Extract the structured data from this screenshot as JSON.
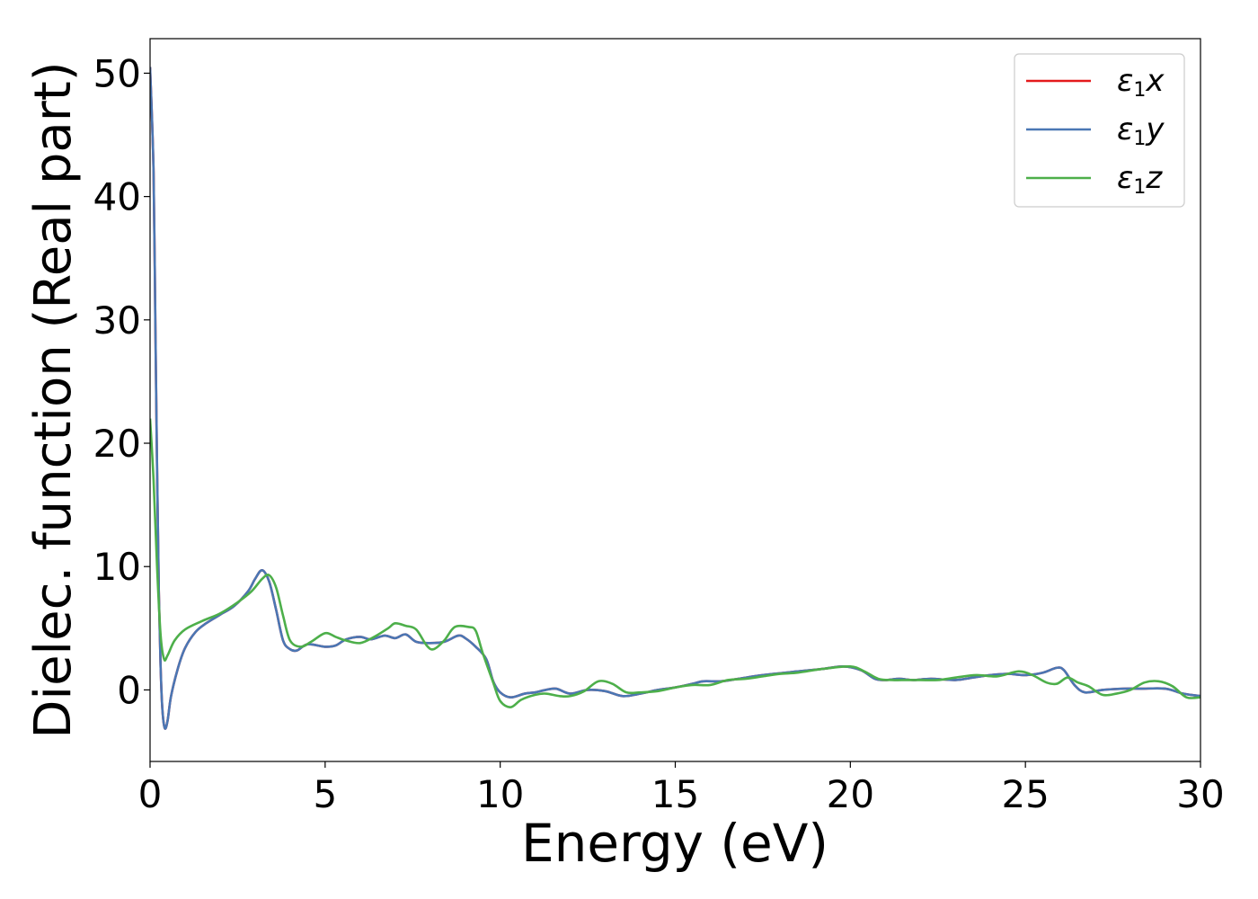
{
  "chart_data": {
    "type": "line",
    "xlabel": "Energy (eV)",
    "ylabel": "Dielec. function (Real part)",
    "xlim": [
      0,
      30
    ],
    "ylim": [
      -5.8,
      52.8
    ],
    "xticks": [
      0,
      5,
      10,
      15,
      20,
      25,
      30
    ],
    "yticks": [
      0,
      10,
      20,
      30,
      40,
      50
    ],
    "grid": false,
    "legend_position": "top-right",
    "series": [
      {
        "name": "ε1x",
        "legend_base": "ε",
        "legend_sub": "1",
        "legend_var": "x",
        "color": "#e41a1c",
        "points": [
          [
            0.0,
            50.5
          ],
          [
            0.1,
            42.0
          ],
          [
            0.15,
            30.0
          ],
          [
            0.2,
            18.0
          ],
          [
            0.25,
            8.0
          ],
          [
            0.3,
            2.0
          ],
          [
            0.35,
            -1.5
          ],
          [
            0.42,
            -3.1
          ],
          [
            0.5,
            -2.5
          ],
          [
            0.6,
            -0.5
          ],
          [
            0.8,
            1.8
          ],
          [
            1.0,
            3.4
          ],
          [
            1.3,
            4.7
          ],
          [
            1.6,
            5.4
          ],
          [
            2.0,
            6.1
          ],
          [
            2.4,
            6.8
          ],
          [
            2.8,
            8.0
          ],
          [
            3.0,
            9.0
          ],
          [
            3.2,
            9.7
          ],
          [
            3.4,
            8.8
          ],
          [
            3.6,
            6.5
          ],
          [
            3.8,
            4.0
          ],
          [
            4.0,
            3.3
          ],
          [
            4.2,
            3.2
          ],
          [
            4.5,
            3.7
          ],
          [
            5.0,
            3.5
          ],
          [
            5.3,
            3.6
          ],
          [
            5.6,
            4.1
          ],
          [
            6.0,
            4.3
          ],
          [
            6.3,
            4.1
          ],
          [
            6.7,
            4.4
          ],
          [
            7.0,
            4.2
          ],
          [
            7.3,
            4.5
          ],
          [
            7.6,
            3.9
          ],
          [
            8.0,
            3.8
          ],
          [
            8.4,
            3.9
          ],
          [
            8.8,
            4.4
          ],
          [
            9.0,
            4.2
          ],
          [
            9.3,
            3.5
          ],
          [
            9.6,
            2.5
          ],
          [
            9.8,
            0.7
          ],
          [
            10.0,
            -0.2
          ],
          [
            10.3,
            -0.6
          ],
          [
            10.7,
            -0.3
          ],
          [
            11.0,
            -0.2
          ],
          [
            11.3,
            0.0
          ],
          [
            11.6,
            0.1
          ],
          [
            12.0,
            -0.3
          ],
          [
            12.5,
            0.0
          ],
          [
            13.0,
            -0.1
          ],
          [
            13.5,
            -0.5
          ],
          [
            14.0,
            -0.3
          ],
          [
            14.5,
            0.0
          ],
          [
            15.0,
            0.2
          ],
          [
            15.5,
            0.5
          ],
          [
            15.8,
            0.7
          ],
          [
            16.3,
            0.7
          ],
          [
            16.8,
            0.9
          ],
          [
            17.5,
            1.2
          ],
          [
            18.5,
            1.5
          ],
          [
            19.2,
            1.7
          ],
          [
            19.8,
            1.9
          ],
          [
            20.3,
            1.6
          ],
          [
            20.7,
            0.9
          ],
          [
            21.0,
            0.8
          ],
          [
            21.4,
            0.9
          ],
          [
            21.8,
            0.8
          ],
          [
            22.3,
            0.9
          ],
          [
            23.0,
            0.8
          ],
          [
            23.5,
            1.0
          ],
          [
            24.0,
            1.2
          ],
          [
            24.5,
            1.3
          ],
          [
            25.0,
            1.2
          ],
          [
            25.5,
            1.4
          ],
          [
            25.9,
            1.8
          ],
          [
            26.1,
            1.6
          ],
          [
            26.4,
            0.4
          ],
          [
            26.7,
            -0.2
          ],
          [
            27.2,
            0.0
          ],
          [
            27.8,
            0.1
          ],
          [
            28.3,
            0.1
          ],
          [
            29.0,
            0.1
          ],
          [
            29.5,
            -0.3
          ],
          [
            30.0,
            -0.5
          ]
        ]
      },
      {
        "name": "ε1y",
        "legend_base": "ε",
        "legend_sub": "1",
        "legend_var": "y",
        "color": "#4a77b4",
        "points": [
          [
            0.0,
            50.5
          ],
          [
            0.1,
            42.0
          ],
          [
            0.15,
            30.0
          ],
          [
            0.2,
            18.0
          ],
          [
            0.25,
            8.0
          ],
          [
            0.3,
            2.0
          ],
          [
            0.35,
            -1.5
          ],
          [
            0.42,
            -3.1
          ],
          [
            0.5,
            -2.5
          ],
          [
            0.6,
            -0.5
          ],
          [
            0.8,
            1.8
          ],
          [
            1.0,
            3.4
          ],
          [
            1.3,
            4.7
          ],
          [
            1.6,
            5.4
          ],
          [
            2.0,
            6.1
          ],
          [
            2.4,
            6.8
          ],
          [
            2.8,
            8.0
          ],
          [
            3.0,
            9.0
          ],
          [
            3.2,
            9.7
          ],
          [
            3.4,
            8.8
          ],
          [
            3.6,
            6.5
          ],
          [
            3.8,
            4.0
          ],
          [
            4.0,
            3.3
          ],
          [
            4.2,
            3.2
          ],
          [
            4.5,
            3.7
          ],
          [
            5.0,
            3.5
          ],
          [
            5.3,
            3.6
          ],
          [
            5.6,
            4.1
          ],
          [
            6.0,
            4.3
          ],
          [
            6.3,
            4.1
          ],
          [
            6.7,
            4.4
          ],
          [
            7.0,
            4.2
          ],
          [
            7.3,
            4.5
          ],
          [
            7.6,
            3.9
          ],
          [
            8.0,
            3.8
          ],
          [
            8.4,
            3.9
          ],
          [
            8.8,
            4.4
          ],
          [
            9.0,
            4.2
          ],
          [
            9.3,
            3.5
          ],
          [
            9.6,
            2.5
          ],
          [
            9.8,
            0.7
          ],
          [
            10.0,
            -0.2
          ],
          [
            10.3,
            -0.6
          ],
          [
            10.7,
            -0.3
          ],
          [
            11.0,
            -0.2
          ],
          [
            11.3,
            0.0
          ],
          [
            11.6,
            0.1
          ],
          [
            12.0,
            -0.3
          ],
          [
            12.5,
            0.0
          ],
          [
            13.0,
            -0.1
          ],
          [
            13.5,
            -0.5
          ],
          [
            14.0,
            -0.3
          ],
          [
            14.5,
            0.0
          ],
          [
            15.0,
            0.2
          ],
          [
            15.5,
            0.5
          ],
          [
            15.8,
            0.7
          ],
          [
            16.3,
            0.7
          ],
          [
            16.8,
            0.9
          ],
          [
            17.5,
            1.2
          ],
          [
            18.5,
            1.5
          ],
          [
            19.2,
            1.7
          ],
          [
            19.8,
            1.9
          ],
          [
            20.3,
            1.6
          ],
          [
            20.7,
            0.9
          ],
          [
            21.0,
            0.8
          ],
          [
            21.4,
            0.9
          ],
          [
            21.8,
            0.8
          ],
          [
            22.3,
            0.9
          ],
          [
            23.0,
            0.8
          ],
          [
            23.5,
            1.0
          ],
          [
            24.0,
            1.2
          ],
          [
            24.5,
            1.3
          ],
          [
            25.0,
            1.2
          ],
          [
            25.5,
            1.4
          ],
          [
            25.9,
            1.8
          ],
          [
            26.1,
            1.6
          ],
          [
            26.4,
            0.4
          ],
          [
            26.7,
            -0.2
          ],
          [
            27.2,
            0.0
          ],
          [
            27.8,
            0.1
          ],
          [
            28.3,
            0.1
          ],
          [
            29.0,
            0.1
          ],
          [
            29.5,
            -0.3
          ],
          [
            30.0,
            -0.5
          ]
        ]
      },
      {
        "name": "ε1z",
        "legend_base": "ε",
        "legend_sub": "1",
        "legend_var": "z",
        "color": "#4daf4a",
        "points": [
          [
            0.0,
            22.0
          ],
          [
            0.1,
            17.0
          ],
          [
            0.2,
            10.0
          ],
          [
            0.3,
            4.5
          ],
          [
            0.4,
            2.5
          ],
          [
            0.5,
            2.8
          ],
          [
            0.7,
            4.0
          ],
          [
            1.0,
            4.9
          ],
          [
            1.5,
            5.6
          ],
          [
            2.0,
            6.2
          ],
          [
            2.5,
            7.1
          ],
          [
            2.9,
            8.0
          ],
          [
            3.2,
            9.0
          ],
          [
            3.4,
            9.3
          ],
          [
            3.6,
            8.3
          ],
          [
            3.8,
            6.0
          ],
          [
            4.0,
            4.0
          ],
          [
            4.3,
            3.5
          ],
          [
            4.6,
            3.9
          ],
          [
            5.0,
            4.6
          ],
          [
            5.3,
            4.3
          ],
          [
            5.6,
            4.0
          ],
          [
            6.0,
            3.8
          ],
          [
            6.4,
            4.3
          ],
          [
            6.8,
            5.0
          ],
          [
            7.0,
            5.4
          ],
          [
            7.3,
            5.2
          ],
          [
            7.6,
            4.9
          ],
          [
            7.9,
            3.6
          ],
          [
            8.1,
            3.3
          ],
          [
            8.4,
            4.0
          ],
          [
            8.7,
            5.1
          ],
          [
            9.1,
            5.1
          ],
          [
            9.3,
            4.8
          ],
          [
            9.5,
            3.0
          ],
          [
            9.8,
            0.6
          ],
          [
            10.0,
            -0.9
          ],
          [
            10.3,
            -1.4
          ],
          [
            10.6,
            -0.8
          ],
          [
            11.0,
            -0.4
          ],
          [
            11.3,
            -0.3
          ],
          [
            11.7,
            -0.5
          ],
          [
            12.0,
            -0.5
          ],
          [
            12.4,
            -0.1
          ],
          [
            12.8,
            0.7
          ],
          [
            13.2,
            0.5
          ],
          [
            13.6,
            -0.2
          ],
          [
            14.0,
            -0.2
          ],
          [
            14.5,
            -0.1
          ],
          [
            15.0,
            0.2
          ],
          [
            15.5,
            0.4
          ],
          [
            16.0,
            0.4
          ],
          [
            16.5,
            0.8
          ],
          [
            17.0,
            0.9
          ],
          [
            17.5,
            1.1
          ],
          [
            18.0,
            1.3
          ],
          [
            18.5,
            1.4
          ],
          [
            19.2,
            1.7
          ],
          [
            20.0,
            1.9
          ],
          [
            20.4,
            1.5
          ],
          [
            20.8,
            0.9
          ],
          [
            21.2,
            0.8
          ],
          [
            21.6,
            0.8
          ],
          [
            22.0,
            0.8
          ],
          [
            22.5,
            0.8
          ],
          [
            23.0,
            1.0
          ],
          [
            23.6,
            1.2
          ],
          [
            24.2,
            1.1
          ],
          [
            24.8,
            1.5
          ],
          [
            25.2,
            1.2
          ],
          [
            25.6,
            0.6
          ],
          [
            25.9,
            0.5
          ],
          [
            26.2,
            1.0
          ],
          [
            26.5,
            0.6
          ],
          [
            26.8,
            0.3
          ],
          [
            27.2,
            -0.4
          ],
          [
            27.6,
            -0.3
          ],
          [
            28.0,
            0.0
          ],
          [
            28.4,
            0.6
          ],
          [
            28.8,
            0.7
          ],
          [
            29.2,
            0.3
          ],
          [
            29.6,
            -0.6
          ],
          [
            30.0,
            -0.6
          ]
        ]
      }
    ]
  }
}
